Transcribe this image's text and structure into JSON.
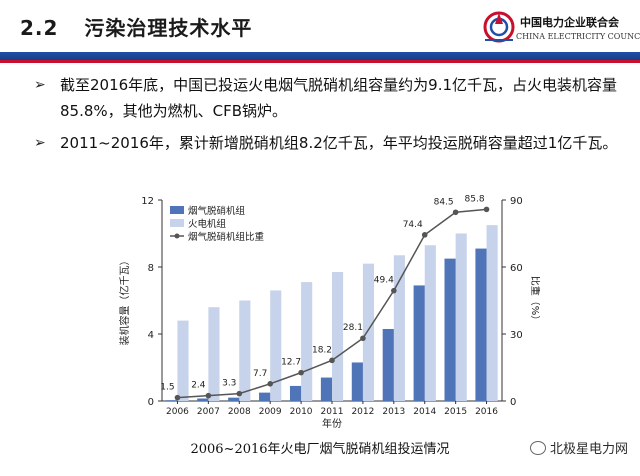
{
  "header": {
    "section_number": "2.2",
    "title": "污染治理技术水平",
    "logo_cn": "中国电力企业联合会",
    "logo_en": "CHINA ELECTRICITY COUNCIL"
  },
  "bullets": [
    "截至2016年底，中国已投运火电烟气脱硝机组容量约为9.1亿千瓦，占火电装机容量85.8%，其他为燃机、CFB锅炉。",
    "2011~2016年，累计新增脱硝机组8.2亿千瓦，年平均投运脱硝容量超过1亿千瓦。"
  ],
  "caption": "2006~2016年火电厂烟气脱硝机组投运情况",
  "watermark": "北极星电力网",
  "colors": {
    "header_blue": "#1f4fa8",
    "header_red": "#c8102e",
    "bar_dark": "#4f74b8",
    "bar_light": "#c7d3ea",
    "line": "#555555"
  },
  "chart_data": {
    "type": "bar",
    "categories": [
      "2006",
      "2007",
      "2008",
      "2009",
      "2010",
      "2011",
      "2012",
      "2013",
      "2014",
      "2015",
      "2016"
    ],
    "series": [
      {
        "name": "烟气脱硝机组",
        "values": [
          0.05,
          0.15,
          0.2,
          0.5,
          0.9,
          1.4,
          2.3,
          4.3,
          6.9,
          8.5,
          9.1
        ]
      },
      {
        "name": "火电机组",
        "values": [
          4.8,
          5.6,
          6.0,
          6.6,
          7.1,
          7.7,
          8.2,
          8.7,
          9.3,
          10.0,
          10.5
        ]
      },
      {
        "name": "烟气脱硝机组比重",
        "type": "line",
        "axis": "right",
        "values": [
          1.5,
          2.4,
          3.3,
          7.7,
          12.7,
          18.2,
          28.1,
          49.4,
          74.4,
          84.5,
          85.8
        ]
      }
    ],
    "data_labels": [
      "1.5",
      "2.4",
      "3.3",
      "7.7",
      "12.7",
      "18.2",
      "28.1",
      "49.4",
      "74.4",
      "84.5",
      "85.8"
    ],
    "xlabel": "年份",
    "ylabel": "装机容量（亿千瓦）",
    "y2label": "比重（%）",
    "ylim": [
      0,
      12
    ],
    "yticks": [
      "0",
      "4",
      "8",
      "12"
    ],
    "y2lim": [
      0,
      90
    ],
    "y2ticks": [
      "0",
      "30",
      "60",
      "90"
    ],
    "grid": false,
    "legend_position": "top-left"
  }
}
